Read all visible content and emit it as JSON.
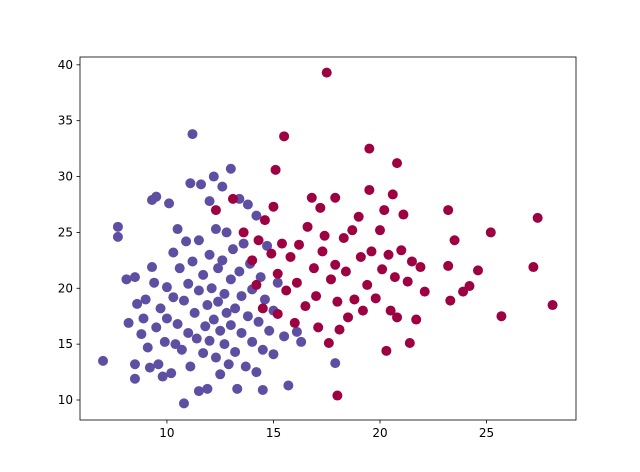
{
  "chart_data": {
    "type": "scatter",
    "xlim": [
      5.92,
      29.2
    ],
    "ylim": [
      8.21,
      40.7
    ],
    "xticks": [
      10,
      15,
      20,
      25
    ],
    "yticks": [
      10,
      15,
      20,
      25,
      30,
      35,
      40
    ],
    "grid": false,
    "series": [
      {
        "color": "#5e4fa2",
        "x": [
          7.0,
          7.7,
          7.7,
          8.1,
          8.2,
          8.5,
          8.5,
          8.6,
          8.5,
          8.8,
          8.9,
          9.0,
          9.1,
          9.2,
          9.3,
          9.3,
          9.4,
          9.5,
          9.5,
          9.6,
          9.7,
          9.8,
          9.9,
          10.0,
          10.0,
          10.1,
          10.2,
          10.3,
          10.3,
          10.4,
          10.5,
          10.5,
          10.6,
          10.7,
          10.8,
          10.8,
          10.9,
          11.0,
          11.0,
          11.1,
          11.1,
          11.2,
          11.2,
          11.3,
          11.4,
          11.5,
          11.5,
          11.5,
          11.6,
          11.7,
          11.7,
          11.8,
          11.9,
          11.9,
          12.0,
          12.0,
          12.0,
          12.1,
          12.2,
          12.2,
          12.3,
          12.3,
          12.4,
          12.4,
          12.5,
          12.5,
          12.6,
          12.6,
          12.7,
          12.7,
          12.8,
          12.8,
          12.9,
          13.0,
          13.0,
          13.0,
          13.1,
          13.2,
          13.2,
          13.3,
          13.4,
          13.4,
          13.5,
          13.5,
          13.6,
          13.7,
          13.8,
          13.8,
          13.9,
          14.0,
          14.0,
          14.2,
          14.2,
          14.3,
          14.4,
          14.5,
          14.5,
          14.6,
          14.7,
          14.8,
          15.0,
          15.0,
          15.2,
          15.5,
          15.7,
          16.1,
          16.3,
          17.9
        ],
        "y": [
          13.5,
          25.5,
          24.6,
          20.8,
          16.9,
          11.9,
          13.2,
          18.6,
          21.0,
          15.9,
          17.3,
          19.0,
          14.7,
          12.9,
          21.9,
          27.9,
          20.5,
          16.5,
          28.2,
          13.2,
          18.2,
          12.1,
          15.2,
          20.1,
          17.3,
          27.6,
          12.4,
          23.2,
          19.2,
          15.0,
          25.3,
          16.8,
          21.8,
          14.5,
          9.7,
          18.9,
          24.2,
          20.4,
          16.0,
          29.4,
          13.0,
          33.8,
          22.4,
          17.8,
          15.5,
          10.8,
          24.3,
          19.8,
          29.3,
          14.2,
          21.2,
          16.6,
          18.5,
          11.0,
          27.8,
          23.0,
          15.3,
          20.0,
          30.0,
          17.2,
          13.8,
          25.3,
          21.8,
          18.8,
          16.2,
          12.3,
          29.1,
          22.5,
          19.5,
          15.0,
          25.0,
          17.8,
          13.2,
          30.7,
          20.8,
          16.7,
          23.5,
          18.2,
          14.3,
          11.0,
          21.5,
          28.0,
          16.0,
          19.3,
          24.0,
          13.0,
          17.5,
          27.5,
          22.2,
          15.2,
          19.9,
          26.5,
          12.5,
          17.0,
          21.0,
          10.9,
          14.5,
          19.0,
          23.8,
          16.2,
          18.0,
          14.1,
          20.5,
          15.7,
          11.3,
          16.1,
          15.2,
          13.3
        ]
      },
      {
        "color": "#9e0142",
        "x": [
          12.3,
          13.1,
          13.6,
          14.0,
          14.2,
          14.3,
          14.5,
          14.6,
          14.9,
          15.0,
          15.1,
          15.2,
          15.2,
          15.4,
          15.5,
          15.6,
          15.8,
          16.0,
          16.1,
          16.2,
          16.5,
          16.6,
          16.8,
          16.9,
          17.0,
          17.1,
          17.2,
          17.3,
          17.4,
          17.5,
          17.6,
          17.7,
          17.9,
          17.9,
          18.0,
          18.0,
          18.1,
          18.3,
          18.4,
          18.5,
          18.7,
          18.8,
          19.0,
          19.1,
          19.2,
          19.4,
          19.5,
          19.5,
          19.6,
          19.8,
          20.0,
          20.1,
          20.2,
          20.3,
          20.4,
          20.5,
          20.6,
          20.7,
          20.8,
          20.8,
          21.0,
          21.1,
          21.3,
          21.4,
          21.5,
          21.7,
          21.9,
          22.1,
          23.2,
          23.2,
          23.3,
          23.5,
          23.9,
          24.2,
          24.6,
          25.2,
          25.7,
          27.2,
          27.4,
          28.1
        ],
        "y": [
          27.0,
          28.0,
          25.0,
          22.5,
          20.3,
          24.3,
          18.2,
          26.1,
          23.1,
          27.3,
          30.6,
          21.3,
          17.7,
          24.0,
          33.6,
          19.8,
          22.8,
          16.9,
          20.5,
          23.9,
          18.4,
          25.5,
          28.1,
          21.8,
          19.3,
          16.5,
          27.2,
          23.3,
          24.7,
          39.3,
          15.1,
          20.8,
          28.1,
          22.1,
          10.4,
          18.8,
          16.3,
          24.5,
          21.5,
          17.4,
          25.2,
          19.0,
          26.4,
          22.8,
          18.0,
          20.3,
          32.5,
          28.8,
          23.3,
          19.1,
          25.2,
          21.7,
          27.0,
          14.4,
          23.0,
          18.0,
          28.4,
          21.0,
          31.2,
          17.4,
          23.4,
          26.6,
          20.6,
          15.1,
          22.4,
          17.2,
          21.9,
          19.7,
          27.0,
          22.0,
          18.9,
          24.3,
          19.7,
          20.2,
          21.6,
          25.0,
          17.5,
          21.9,
          26.3,
          18.5
        ]
      }
    ]
  }
}
